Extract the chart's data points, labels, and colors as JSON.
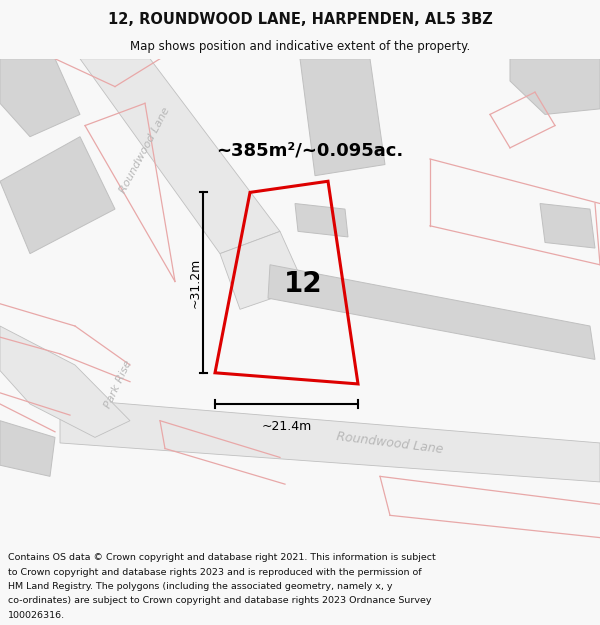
{
  "title": "12, ROUNDWOOD LANE, HARPENDEN, AL5 3BZ",
  "subtitle": "Map shows position and indicative extent of the property.",
  "area_text": "~385m²/~0.095ac.",
  "label_12": "12",
  "dim_vertical": "~31.2m",
  "dim_horizontal": "~21.4m",
  "footer_lines": [
    "Contains OS data © Crown copyright and database right 2021. This information is subject",
    "to Crown copyright and database rights 2023 and is reproduced with the permission of",
    "HM Land Registry. The polygons (including the associated geometry, namely x, y",
    "co-ordinates) are subject to Crown copyright and database rights 2023 Ordnance Survey",
    "100026316."
  ],
  "bg_color": "#f8f8f8",
  "map_bg": "#ffffff",
  "road_color": "#e0e0e0",
  "building_color": "#d4d4d4",
  "building_edge": "#c0c0c0",
  "red_outline": "#dd0000",
  "pink_line": "#e8a8a8",
  "road_label_color": "#b8b8b8",
  "title_color": "#111111",
  "footer_color": "#111111",
  "road_strip_color": "#e8e8e8"
}
